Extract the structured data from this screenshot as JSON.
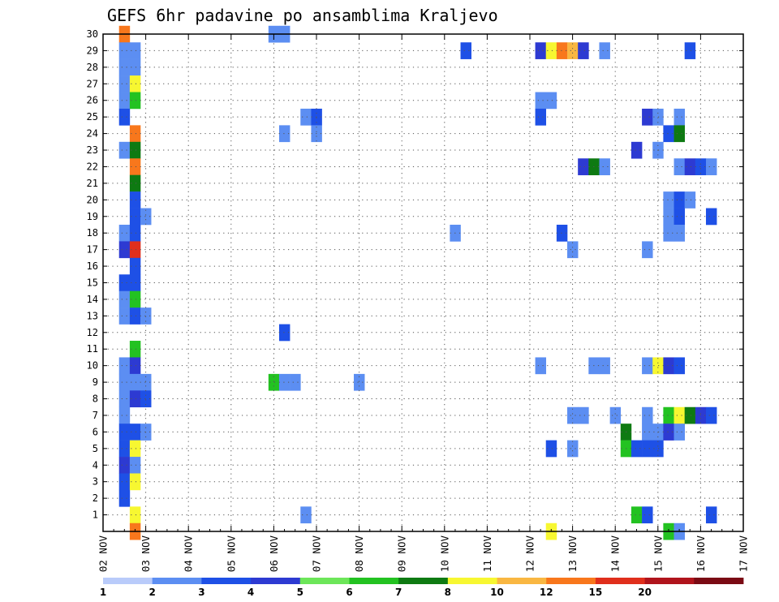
{
  "chart_data": {
    "type": "heatmap",
    "title": "GEFS 6hr padavine po ansamblima Kraljevo",
    "xlabel": "",
    "ylabel": "",
    "x_start": "02 NOV",
    "x_steps_per_day": 4,
    "x_tick_labels": [
      "02 NOV",
      "03 NOV",
      "04 NOV",
      "05 NOV",
      "06 NOV",
      "07 NOV",
      "08 NOV",
      "09 NOV",
      "10 NOV",
      "11 NOV",
      "12 NOV",
      "13 NOV",
      "14 NOV",
      "15 NOV",
      "16 NOV",
      "17 NOV"
    ],
    "y_tick_labels": [
      "1",
      "2",
      "3",
      "4",
      "5",
      "6",
      "7",
      "8",
      "9",
      "10",
      "11",
      "12",
      "13",
      "14",
      "15",
      "16",
      "17",
      "18",
      "19",
      "20",
      "21",
      "22",
      "23",
      "24",
      "25",
      "26",
      "27",
      "28",
      "29",
      "30"
    ],
    "ylim": [
      0,
      30
    ],
    "grid": true,
    "colorbar": {
      "position": "bottom",
      "colors": [
        "#b9cbfa",
        "#5c8ef2",
        "#1e50e6",
        "#2d3ad2",
        "#6de659",
        "#23c221",
        "#0e7a12",
        "#f7f731",
        "#f9b742",
        "#f8771c",
        "#e02f1c",
        "#b0141c",
        "#7a0a14"
      ],
      "labels": [
        "1",
        "2",
        "3",
        "4",
        "5",
        "6",
        "7",
        "8",
        "10",
        "12",
        "15",
        "20"
      ]
    },
    "cells": [
      [
        1,
        30,
        9
      ],
      [
        1,
        29,
        1
      ],
      [
        1,
        28,
        1
      ],
      [
        1,
        27,
        1
      ],
      [
        1,
        26,
        1
      ],
      [
        1,
        25,
        2
      ],
      [
        1,
        23,
        1
      ],
      [
        1,
        18,
        1
      ],
      [
        1,
        17,
        3
      ],
      [
        1,
        15,
        2
      ],
      [
        1,
        14,
        1
      ],
      [
        1,
        13,
        1
      ],
      [
        1,
        10,
        1
      ],
      [
        1,
        9,
        1
      ],
      [
        1,
        8,
        1
      ],
      [
        1,
        7,
        1
      ],
      [
        1,
        6,
        2
      ],
      [
        1,
        5,
        2
      ],
      [
        1,
        4,
        3
      ],
      [
        1,
        3,
        2
      ],
      [
        1,
        2,
        2
      ],
      [
        2,
        29,
        1
      ],
      [
        2,
        28,
        1
      ],
      [
        2,
        27,
        7
      ],
      [
        2,
        26,
        5
      ],
      [
        2,
        24,
        9
      ],
      [
        2,
        23,
        6
      ],
      [
        2,
        22,
        9
      ],
      [
        2,
        21,
        6
      ],
      [
        2,
        20,
        2
      ],
      [
        2,
        19,
        2
      ],
      [
        2,
        18,
        2
      ],
      [
        2,
        17,
        10
      ],
      [
        2,
        16,
        2
      ],
      [
        2,
        15,
        2
      ],
      [
        2,
        14,
        5
      ],
      [
        2,
        13,
        2
      ],
      [
        2,
        11,
        5
      ],
      [
        2,
        10,
        3
      ],
      [
        2,
        9,
        1
      ],
      [
        2,
        8,
        3
      ],
      [
        2,
        6,
        2
      ],
      [
        2,
        5,
        7
      ],
      [
        2,
        4,
        1
      ],
      [
        2,
        3,
        7
      ],
      [
        2,
        1,
        7
      ],
      [
        2,
        0,
        9
      ],
      [
        3,
        19,
        1
      ],
      [
        3,
        13,
        1
      ],
      [
        3,
        9,
        1
      ],
      [
        3,
        8,
        2
      ],
      [
        3,
        6,
        1
      ],
      [
        15,
        30,
        1
      ],
      [
        15,
        9,
        5
      ],
      [
        16,
        30,
        1
      ],
      [
        16,
        24,
        1
      ],
      [
        16,
        12,
        2
      ],
      [
        16,
        9,
        1
      ],
      [
        17,
        9,
        1
      ],
      [
        18,
        25,
        1
      ],
      [
        18,
        1,
        1
      ],
      [
        19,
        25,
        2
      ],
      [
        19,
        24,
        1
      ],
      [
        23,
        9,
        1
      ],
      [
        32,
        18,
        1
      ],
      [
        33,
        29,
        2
      ],
      [
        40,
        29,
        3
      ],
      [
        40,
        26,
        1
      ],
      [
        40,
        25,
        2
      ],
      [
        40,
        10,
        1
      ],
      [
        41,
        29,
        7
      ],
      [
        41,
        26,
        1
      ],
      [
        41,
        5,
        2
      ],
      [
        41,
        0,
        7
      ],
      [
        42,
        29,
        9
      ],
      [
        42,
        18,
        2
      ],
      [
        43,
        29,
        8
      ],
      [
        43,
        17,
        1
      ],
      [
        43,
        7,
        1
      ],
      [
        43,
        5,
        1
      ],
      [
        44,
        29,
        3
      ],
      [
        44,
        22,
        3
      ],
      [
        44,
        7,
        1
      ],
      [
        45,
        22,
        6
      ],
      [
        45,
        10,
        1
      ],
      [
        46,
        29,
        1
      ],
      [
        46,
        22,
        1
      ],
      [
        46,
        10,
        1
      ],
      [
        47,
        7,
        1
      ],
      [
        48,
        6,
        6
      ],
      [
        48,
        5,
        5
      ],
      [
        49,
        23,
        3
      ],
      [
        49,
        5,
        2
      ],
      [
        49,
        1,
        5
      ],
      [
        50,
        25,
        3
      ],
      [
        50,
        17,
        1
      ],
      [
        50,
        10,
        1
      ],
      [
        50,
        7,
        1
      ],
      [
        50,
        6,
        1
      ],
      [
        50,
        5,
        2
      ],
      [
        50,
        1,
        2
      ],
      [
        51,
        25,
        1
      ],
      [
        51,
        23,
        1
      ],
      [
        51,
        10,
        7
      ],
      [
        51,
        6,
        1
      ],
      [
        51,
        5,
        2
      ],
      [
        52,
        24,
        2
      ],
      [
        52,
        20,
        1
      ],
      [
        52,
        19,
        1
      ],
      [
        52,
        18,
        1
      ],
      [
        52,
        10,
        3
      ],
      [
        52,
        7,
        5
      ],
      [
        52,
        6,
        3
      ],
      [
        52,
        0,
        5
      ],
      [
        53,
        25,
        1
      ],
      [
        53,
        24,
        6
      ],
      [
        53,
        22,
        1
      ],
      [
        53,
        20,
        2
      ],
      [
        53,
        19,
        2
      ],
      [
        53,
        18,
        1
      ],
      [
        53,
        10,
        2
      ],
      [
        53,
        7,
        7
      ],
      [
        53,
        6,
        1
      ],
      [
        53,
        0,
        1
      ],
      [
        54,
        29,
        2
      ],
      [
        54,
        22,
        3
      ],
      [
        54,
        20,
        1
      ],
      [
        54,
        7,
        6
      ],
      [
        55,
        22,
        2
      ],
      [
        55,
        7,
        3
      ],
      [
        56,
        22,
        1
      ],
      [
        56,
        19,
        2
      ],
      [
        56,
        7,
        2
      ],
      [
        56,
        1,
        2
      ]
    ]
  }
}
